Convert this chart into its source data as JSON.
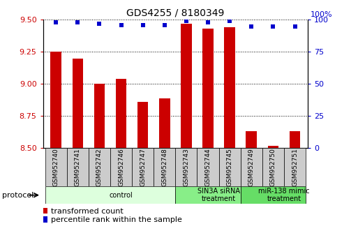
{
  "title": "GDS4255 / 8180349",
  "samples": [
    "GSM952740",
    "GSM952741",
    "GSM952742",
    "GSM952746",
    "GSM952747",
    "GSM952748",
    "GSM952743",
    "GSM952744",
    "GSM952745",
    "GSM952749",
    "GSM952750",
    "GSM952751"
  ],
  "transformed_count": [
    9.25,
    9.2,
    9.0,
    9.04,
    8.86,
    8.89,
    9.47,
    9.43,
    9.44,
    8.63,
    8.52,
    8.63
  ],
  "percentile_rank": [
    98,
    98,
    97,
    96,
    96,
    96,
    99,
    98,
    99,
    95,
    95,
    95
  ],
  "bar_color": "#cc0000",
  "dot_color": "#0000cc",
  "ylim_left": [
    8.5,
    9.5
  ],
  "ylim_right": [
    0,
    100
  ],
  "yticks_left": [
    8.5,
    8.75,
    9.0,
    9.25,
    9.5
  ],
  "yticks_right": [
    0,
    25,
    50,
    75,
    100
  ],
  "groups": [
    {
      "label": "control",
      "start": 0,
      "end": 6,
      "color": "#ddffdd"
    },
    {
      "label": "SIN3A siRNA\ntreatment",
      "start": 6,
      "end": 9,
      "color": "#88ee88"
    },
    {
      "label": "miR-138 mimic\ntreatment",
      "start": 9,
      "end": 12,
      "color": "#66dd66"
    }
  ],
  "protocol_label": "protocol",
  "legend_bar_label": "transformed count",
  "legend_dot_label": "percentile rank within the sample",
  "bar_width": 0.5,
  "background_color": "#ffffff",
  "grid_color": "#000000",
  "tick_label_color_left": "#cc0000",
  "tick_label_color_right": "#0000cc",
  "xlabel_box_color": "#cccccc",
  "right_axis_top_label": "100%"
}
